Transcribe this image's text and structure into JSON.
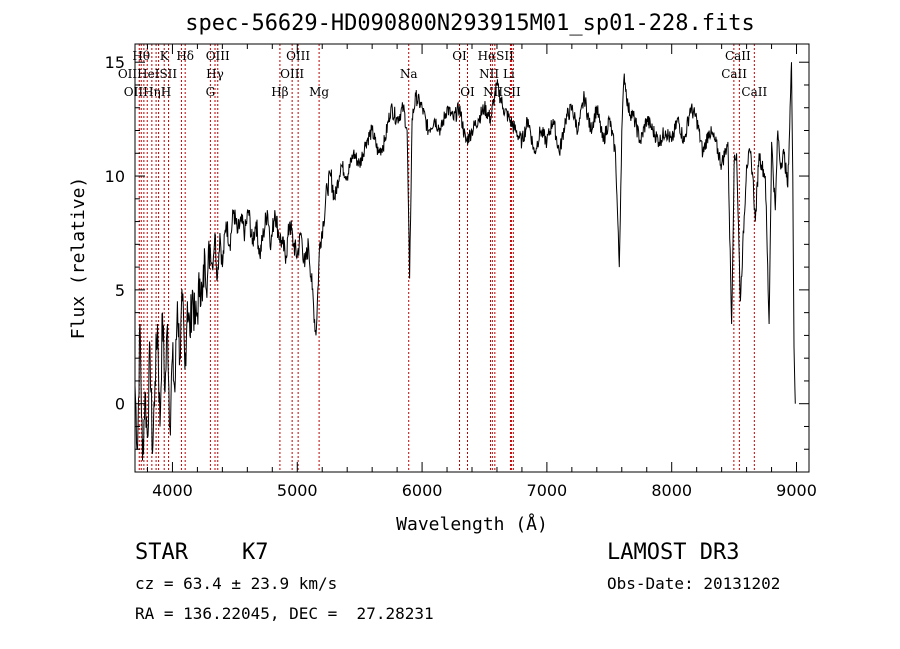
{
  "chart_data": {
    "type": "line",
    "title": "spec-56629-HD090800N293915M01_sp01-228.fits",
    "xlabel": "Wavelength (Å)",
    "ylabel": "Flux (relative)",
    "xlim": [
      3700,
      9100
    ],
    "ylim": [
      -3,
      15.8
    ],
    "xticks": [
      4000,
      5000,
      6000,
      7000,
      8000,
      9000
    ],
    "xtick_labels": [
      "4000",
      "5000",
      "6000",
      "7000",
      "8000",
      "9000"
    ],
    "yticks": [
      0,
      5,
      10,
      15
    ],
    "ytick_labels": [
      "0",
      "5",
      "10",
      "15"
    ],
    "series": [
      {
        "name": "flux",
        "x": [
          3700,
          3720,
          3740,
          3760,
          3780,
          3800,
          3820,
          3840,
          3860,
          3880,
          3900,
          3920,
          3940,
          3960,
          3980,
          4000,
          4020,
          4040,
          4060,
          4080,
          4100,
          4120,
          4140,
          4160,
          4180,
          4200,
          4220,
          4240,
          4260,
          4280,
          4300,
          4320,
          4340,
          4360,
          4380,
          4400,
          4430,
          4460,
          4490,
          4520,
          4550,
          4580,
          4610,
          4640,
          4670,
          4700,
          4730,
          4760,
          4790,
          4820,
          4850,
          4880,
          4910,
          4940,
          4970,
          5000,
          5030,
          5060,
          5090,
          5120,
          5150,
          5180,
          5210,
          5240,
          5270,
          5300,
          5350,
          5400,
          5450,
          5500,
          5550,
          5600,
          5650,
          5700,
          5750,
          5800,
          5850,
          5880,
          5900,
          5920,
          5950,
          6000,
          6050,
          6100,
          6150,
          6200,
          6250,
          6300,
          6350,
          6400,
          6450,
          6500,
          6550,
          6580,
          6600,
          6650,
          6700,
          6750,
          6800,
          6850,
          6900,
          6950,
          7000,
          7050,
          7100,
          7150,
          7200,
          7250,
          7300,
          7350,
          7400,
          7450,
          7500,
          7550,
          7580,
          7600,
          7620,
          7650,
          7700,
          7750,
          7800,
          7850,
          7900,
          7950,
          8000,
          8050,
          8100,
          8150,
          8200,
          8250,
          8300,
          8350,
          8400,
          8450,
          8480,
          8500,
          8520,
          8550,
          8600,
          8630,
          8650,
          8670,
          8700,
          8720,
          8750,
          8780,
          8800,
          8830,
          8850,
          8870,
          8900,
          8930,
          8960,
          8970,
          8980,
          8990
        ],
        "y": [
          0.8,
          -2.0,
          3.5,
          -2.5,
          0.5,
          -1.5,
          2.5,
          -2.2,
          1.0,
          3.5,
          -1.0,
          4.0,
          0.5,
          3.5,
          -1.0,
          2.0,
          0.5,
          4.5,
          2.0,
          4.5,
          1.5,
          4.5,
          3.0,
          5.0,
          3.5,
          4.0,
          5.5,
          4.5,
          6.5,
          5.5,
          7.0,
          6.0,
          7.5,
          5.5,
          7.5,
          6.0,
          8.0,
          7.0,
          8.5,
          7.5,
          8.0,
          7.5,
          8.5,
          7.0,
          8.0,
          6.5,
          7.5,
          8.5,
          7.0,
          8.5,
          7.5,
          7.0,
          6.5,
          8.0,
          7.0,
          6.5,
          7.5,
          6.0,
          7.0,
          5.0,
          3.0,
          7.0,
          8.0,
          9.5,
          10.0,
          9.0,
          10.5,
          10.0,
          11.0,
          10.5,
          11.5,
          12.0,
          11.0,
          11.5,
          13.0,
          12.5,
          13.0,
          12.0,
          5.5,
          12.5,
          13.5,
          13.0,
          12.0,
          12.5,
          12.0,
          13.0,
          12.5,
          13.0,
          11.5,
          12.0,
          12.5,
          13.0,
          12.5,
          13.5,
          14.0,
          13.0,
          12.5,
          12.0,
          11.5,
          12.5,
          11.0,
          12.0,
          11.5,
          12.5,
          11.0,
          12.5,
          13.0,
          12.0,
          13.5,
          12.0,
          13.0,
          11.5,
          12.5,
          11.0,
          6.0,
          12.0,
          14.5,
          13.0,
          12.5,
          11.5,
          12.5,
          12.0,
          11.5,
          12.0,
          11.5,
          12.5,
          11.5,
          13.0,
          12.5,
          11.0,
          12.0,
          11.5,
          10.5,
          11.5,
          3.5,
          10.5,
          11.0,
          4.5,
          10.5,
          11.0,
          10.0,
          8.0,
          11.0,
          10.5,
          10.0,
          3.5,
          11.5,
          8.5,
          12.0,
          10.5,
          11.0,
          9.5,
          15.0,
          10.0,
          2.5,
          0.0
        ]
      }
    ],
    "lines": [
      {
        "x": 3734,
        "labels": [
          "OII"
        ]
      },
      {
        "x": 3750,
        "labels": [
          "Hθ"
        ]
      },
      {
        "x": 3771,
        "labels": [
          "Hη"
        ]
      },
      {
        "x": 3798,
        "labels": [
          "Hη"
        ]
      },
      {
        "x": 3835,
        "labels": [
          "Hε"
        ]
      },
      {
        "x": 3869,
        "labels": [
          "NeIII"
        ]
      },
      {
        "x": 3889,
        "labels": [
          "HeI"
        ]
      },
      {
        "x": 3934,
        "labels": [
          "K"
        ]
      },
      {
        "x": 3969,
        "labels": [
          "H"
        ]
      },
      {
        "x": 4072,
        "labels": [
          "SII"
        ]
      },
      {
        "x": 4102,
        "labels": [
          "Hδ"
        ]
      },
      {
        "x": 4304,
        "labels": [
          "G"
        ]
      },
      {
        "x": 4341,
        "labels": [
          "Hγ"
        ]
      },
      {
        "x": 4363,
        "labels": [
          "OIII"
        ]
      },
      {
        "x": 4861,
        "labels": [
          "Hβ"
        ]
      },
      {
        "x": 4959,
        "labels": [
          "OIII"
        ]
      },
      {
        "x": 5007,
        "labels": [
          "OIII"
        ]
      },
      {
        "x": 5175,
        "labels": [
          "Mg"
        ]
      },
      {
        "x": 5893,
        "labels": [
          "Na"
        ]
      },
      {
        "x": 6300,
        "labels": [
          "OI"
        ]
      },
      {
        "x": 6364,
        "labels": [
          "OI"
        ]
      },
      {
        "x": 6548,
        "labels": [
          "NII"
        ]
      },
      {
        "x": 6563,
        "labels": [
          "Hα"
        ]
      },
      {
        "x": 6583,
        "labels": [
          "NII"
        ]
      },
      {
        "x": 6708,
        "labels": [
          "Li"
        ]
      },
      {
        "x": 6716,
        "labels": [
          "SII"
        ]
      },
      {
        "x": 6731,
        "labels": [
          "SII"
        ]
      },
      {
        "x": 8498,
        "labels": [
          "CaII"
        ]
      },
      {
        "x": 8542,
        "labels": [
          "CaII"
        ]
      },
      {
        "x": 8662,
        "labels": [
          "CaII"
        ]
      }
    ],
    "line_labels": [
      {
        "text": "Hθ",
        "x": 3750,
        "row": 0
      },
      {
        "text": "K",
        "x": 3934,
        "row": 0
      },
      {
        "text": "Hδ",
        "x": 4102,
        "row": 0
      },
      {
        "text": "OIII",
        "x": 4363,
        "row": 0
      },
      {
        "text": "OIII",
        "x": 5007,
        "row": 0
      },
      {
        "text": "OI",
        "x": 6300,
        "row": 0
      },
      {
        "text": "HαSII",
        "x": 6590,
        "row": 0
      },
      {
        "text": "CaII",
        "x": 8530,
        "row": 0
      },
      {
        "text": "OIIHeISII",
        "x": 3800,
        "row": 1
      },
      {
        "text": "Hγ",
        "x": 4341,
        "row": 1
      },
      {
        "text": "OIII",
        "x": 4959,
        "row": 1
      },
      {
        "text": "Na",
        "x": 5893,
        "row": 1
      },
      {
        "text": "NII Li",
        "x": 6600,
        "row": 1
      },
      {
        "text": "CaII",
        "x": 8500,
        "row": 1
      },
      {
        "text": "OIIHηH",
        "x": 3800,
        "row": 2
      },
      {
        "text": "G",
        "x": 4304,
        "row": 2
      },
      {
        "text": "Hβ",
        "x": 4861,
        "row": 2
      },
      {
        "text": "Mg",
        "x": 5175,
        "row": 2
      },
      {
        "text": "OI",
        "x": 6364,
        "row": 2
      },
      {
        "text": "NIISII",
        "x": 6640,
        "row": 2
      },
      {
        "text": "CaII",
        "x": 8662,
        "row": 2
      }
    ]
  },
  "info": {
    "object_class": "STAR",
    "subclass": "K7",
    "survey": "LAMOST DR3",
    "redshift": "cz = 63.4 ± 23.9 km/s",
    "obs_date": "Obs-Date: 20131202",
    "coords": "RA = 136.22045, DEC =  27.28231"
  }
}
